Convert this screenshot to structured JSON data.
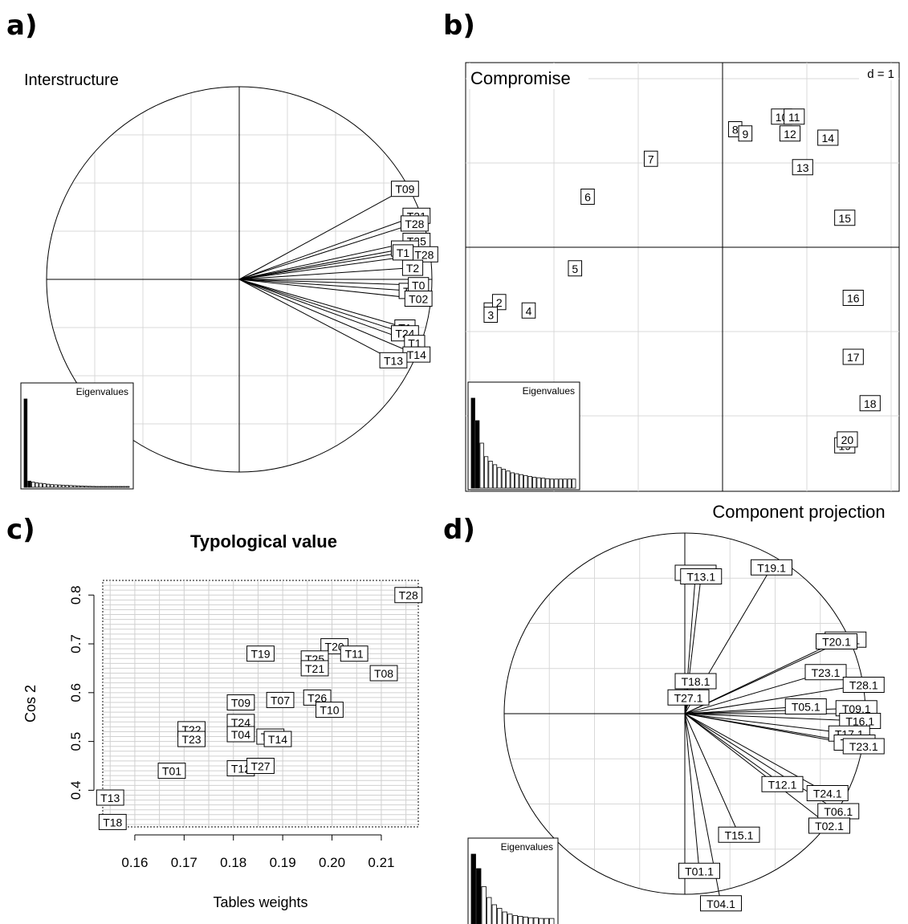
{
  "panel_labels": [
    "a)",
    "b)",
    "c)",
    "d)"
  ],
  "chart_data": [
    {
      "panel": "a)",
      "type": "scatter",
      "subtype": "correlation-circle",
      "title": "Interstructure",
      "eigen_label": "Eigenvalues",
      "eigenvalues": [
        1.0,
        0.07,
        0.06,
        0.05,
        0.045,
        0.04,
        0.035,
        0.03,
        0.028,
        0.026,
        0.024,
        0.022,
        0.02,
        0.018,
        0.016,
        0.014,
        0.012,
        0.011,
        0.01,
        0.009,
        0.008,
        0.007,
        0.006,
        0.005,
        0.004,
        0.003,
        0.002,
        0.001
      ],
      "arrows": [
        {
          "label": "T09",
          "x": 0.86,
          "y": 0.47
        },
        {
          "label": "T21",
          "x": 0.92,
          "y": 0.33
        },
        {
          "label": "T28",
          "x": 0.91,
          "y": 0.29
        },
        {
          "label": "T25",
          "x": 0.92,
          "y": 0.2
        },
        {
          "label": "T23",
          "x": 0.86,
          "y": 0.16
        },
        {
          "label": "T28",
          "x": 0.96,
          "y": 0.13
        },
        {
          "label": "T1",
          "x": 0.85,
          "y": 0.14
        },
        {
          "label": "T2",
          "x": 0.9,
          "y": 0.06
        },
        {
          "label": "T27",
          "x": 0.9,
          "y": -0.06
        },
        {
          "label": "T0",
          "x": 0.93,
          "y": -0.03
        },
        {
          "label": "T02",
          "x": 0.93,
          "y": -0.1
        },
        {
          "label": "T1",
          "x": 0.86,
          "y": -0.25
        },
        {
          "label": "T24",
          "x": 0.86,
          "y": -0.28
        },
        {
          "label": "T1",
          "x": 0.91,
          "y": -0.33
        },
        {
          "label": "T14",
          "x": 0.92,
          "y": -0.39
        },
        {
          "label": "T13",
          "x": 0.8,
          "y": -0.42
        }
      ]
    },
    {
      "panel": "b)",
      "type": "scatter",
      "title": "Compromise",
      "scale_label": "d = 1",
      "eigen_label": "Eigenvalues",
      "eigenvalues": [
        1.0,
        0.75,
        0.5,
        0.35,
        0.3,
        0.26,
        0.23,
        0.21,
        0.19,
        0.17,
        0.16,
        0.15,
        0.14,
        0.13,
        0.12,
        0.115,
        0.11,
        0.105,
        0.1,
        0.1,
        0.1,
        0.1,
        0.1,
        0.1
      ],
      "points": [
        {
          "label": "1",
          "x": -2.75,
          "y": -0.75
        },
        {
          "label": "2",
          "x": -2.65,
          "y": -0.65
        },
        {
          "label": "3",
          "x": -2.75,
          "y": -0.8
        },
        {
          "label": "4",
          "x": -2.3,
          "y": -0.75
        },
        {
          "label": "5",
          "x": -1.75,
          "y": -0.25
        },
        {
          "label": "6",
          "x": -1.6,
          "y": 0.6
        },
        {
          "label": "7",
          "x": -0.85,
          "y": 1.05
        },
        {
          "label": "8",
          "x": 0.15,
          "y": 1.4
        },
        {
          "label": "9",
          "x": 0.27,
          "y": 1.35
        },
        {
          "label": "10",
          "x": 0.7,
          "y": 1.55
        },
        {
          "label": "11",
          "x": 0.85,
          "y": 1.55
        },
        {
          "label": "12",
          "x": 0.8,
          "y": 1.35
        },
        {
          "label": "14",
          "x": 1.25,
          "y": 1.3
        },
        {
          "label": "13",
          "x": 0.95,
          "y": 0.95
        },
        {
          "label": "15",
          "x": 1.45,
          "y": 0.35
        },
        {
          "label": "16",
          "x": 1.55,
          "y": -0.6
        },
        {
          "label": "17",
          "x": 1.55,
          "y": -1.3
        },
        {
          "label": "18",
          "x": 1.75,
          "y": -1.85
        },
        {
          "label": "19",
          "x": 1.45,
          "y": -2.35
        },
        {
          "label": "20",
          "x": 1.48,
          "y": -2.28
        }
      ]
    },
    {
      "panel": "c)",
      "type": "scatter",
      "title": "Typological value",
      "xlabel": "Tables weights",
      "ylabel": "Cos 2",
      "xticks": [
        "0.16",
        "0.17",
        "0.18",
        "0.19",
        "0.20",
        "0.21"
      ],
      "yticks": [
        "0.4",
        "0.5",
        "0.6",
        "0.7",
        "0.8"
      ],
      "xlim": [
        0.1535,
        0.2175
      ],
      "ylim": [
        0.325,
        0.83
      ],
      "grid": true,
      "points": [
        {
          "label": "T28",
          "x": 0.2155,
          "y": 0.8
        },
        {
          "label": "T20",
          "x": 0.2005,
          "y": 0.695
        },
        {
          "label": "T19",
          "x": 0.1855,
          "y": 0.68
        },
        {
          "label": "T11",
          "x": 0.2045,
          "y": 0.68
        },
        {
          "label": "T25",
          "x": 0.1965,
          "y": 0.67
        },
        {
          "label": "T21",
          "x": 0.1965,
          "y": 0.65
        },
        {
          "label": "T08",
          "x": 0.2105,
          "y": 0.64
        },
        {
          "label": "T09",
          "x": 0.1815,
          "y": 0.58
        },
        {
          "label": "T07",
          "x": 0.1895,
          "y": 0.585
        },
        {
          "label": "T26",
          "x": 0.197,
          "y": 0.59
        },
        {
          "label": "T10",
          "x": 0.1995,
          "y": 0.565
        },
        {
          "label": "T24",
          "x": 0.1815,
          "y": 0.54
        },
        {
          "label": "T22",
          "x": 0.1715,
          "y": 0.525
        },
        {
          "label": "T23",
          "x": 0.1715,
          "y": 0.505
        },
        {
          "label": "T04",
          "x": 0.1815,
          "y": 0.515
        },
        {
          "label": "T17",
          "x": 0.1875,
          "y": 0.51
        },
        {
          "label": "T14",
          "x": 0.189,
          "y": 0.505
        },
        {
          "label": "T01",
          "x": 0.1675,
          "y": 0.44
        },
        {
          "label": "T12",
          "x": 0.1815,
          "y": 0.445
        },
        {
          "label": "T27",
          "x": 0.1855,
          "y": 0.45
        },
        {
          "label": "T13",
          "x": 0.155,
          "y": 0.385
        },
        {
          "label": "T18",
          "x": 0.1555,
          "y": 0.335
        }
      ]
    },
    {
      "panel": "d)",
      "type": "scatter",
      "subtype": "correlation-circle",
      "title": "Component projection",
      "eigen_label": "Eigenvalues",
      "eigenvalues": [
        1.0,
        0.8,
        0.55,
        0.4,
        0.3,
        0.25,
        0.2,
        0.17,
        0.15,
        0.14,
        0.13,
        0.12,
        0.12,
        0.11,
        0.11,
        0.11
      ],
      "arrows": [
        {
          "label": "T14.1",
          "x": 0.06,
          "y": 0.78
        },
        {
          "label": "T13.1",
          "x": 0.09,
          "y": 0.76
        },
        {
          "label": "T19.1",
          "x": 0.48,
          "y": 0.81
        },
        {
          "label": "T25.1",
          "x": 0.89,
          "y": 0.41
        },
        {
          "label": "T20.1",
          "x": 0.84,
          "y": 0.4
        },
        {
          "label": "T23.1",
          "x": 0.78,
          "y": 0.23
        },
        {
          "label": "T28.1",
          "x": 0.99,
          "y": 0.16
        },
        {
          "label": "T18.1",
          "x": 0.06,
          "y": 0.18
        },
        {
          "label": "T27.1",
          "x": 0.02,
          "y": 0.09
        },
        {
          "label": "T05.1",
          "x": 0.67,
          "y": 0.04
        },
        {
          "label": "T09.1",
          "x": 0.95,
          "y": 0.03
        },
        {
          "label": "T16.1",
          "x": 0.97,
          "y": -0.04
        },
        {
          "label": "T17.1",
          "x": 0.91,
          "y": -0.11
        },
        {
          "label": "T26.1",
          "x": 0.94,
          "y": -0.16
        },
        {
          "label": "T23.1",
          "x": 0.99,
          "y": -0.18
        },
        {
          "label": "T12.1",
          "x": 0.54,
          "y": -0.39
        },
        {
          "label": "T24.1",
          "x": 0.79,
          "y": -0.44
        },
        {
          "label": "T06.1",
          "x": 0.85,
          "y": -0.54
        },
        {
          "label": "T02.1",
          "x": 0.8,
          "y": -0.62
        },
        {
          "label": "T15.1",
          "x": 0.3,
          "y": -0.67
        },
        {
          "label": "T01.1",
          "x": 0.08,
          "y": -0.87
        },
        {
          "label": "T04.1",
          "x": 0.2,
          "y": -1.05
        }
      ]
    }
  ]
}
